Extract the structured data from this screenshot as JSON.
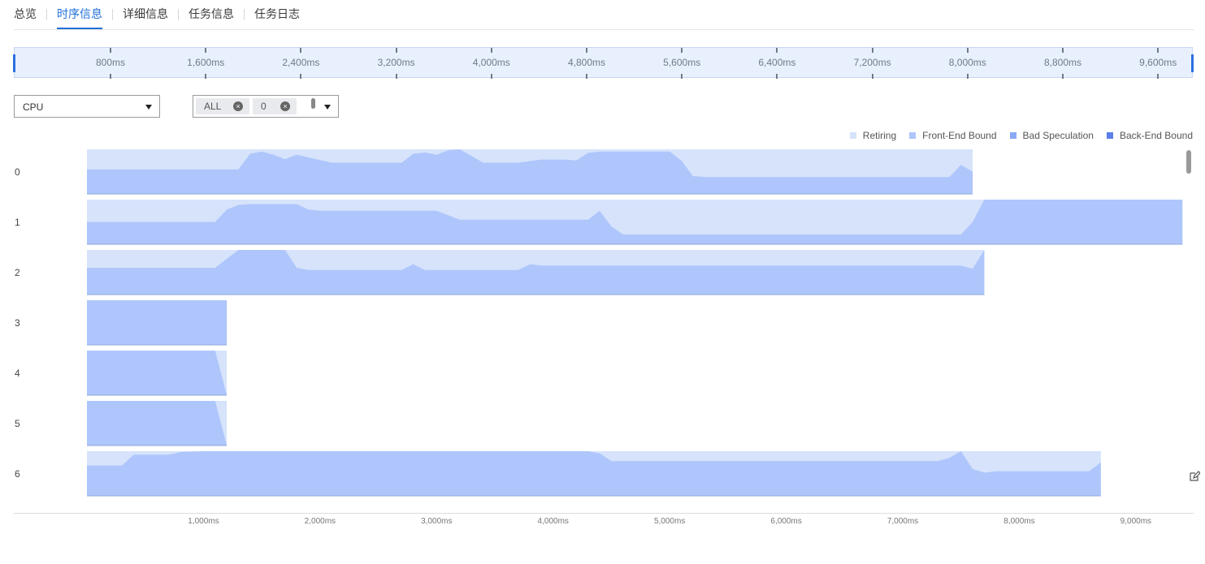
{
  "tabs": [
    {
      "label": "总览",
      "active": false
    },
    {
      "label": "时序信息",
      "active": true
    },
    {
      "label": "详细信息",
      "active": false
    },
    {
      "label": "任务信息",
      "active": false
    },
    {
      "label": "任务日志",
      "active": false
    }
  ],
  "overview_ticks": [
    "800ms",
    "1,600ms",
    "2,400ms",
    "3,200ms",
    "4,000ms",
    "4,800ms",
    "5,600ms",
    "6,400ms",
    "7,200ms",
    "8,000ms",
    "8,800ms",
    "9,600ms"
  ],
  "controls": {
    "type_select": {
      "value": "CPU"
    },
    "core_select": {
      "chips": [
        "ALL",
        "0"
      ]
    }
  },
  "legend": [
    {
      "label": "Retiring",
      "color": "#d6e3fb"
    },
    {
      "label": "Front-End Bound",
      "color": "#aec6fb"
    },
    {
      "label": "Bad Speculation",
      "color": "#89a8f5"
    },
    {
      "label": "Back-End Bound",
      "color": "#5a7fe8"
    }
  ],
  "rows": [
    "0",
    "1",
    "2",
    "3",
    "4",
    "5",
    "6"
  ],
  "bottom_ticks": [
    "1,000ms",
    "2,000ms",
    "3,000ms",
    "4,000ms",
    "5,000ms",
    "6,000ms",
    "7,000ms",
    "8,000ms",
    "9,000ms"
  ],
  "chart_data": {
    "type": "area",
    "x_unit": "ms",
    "y_range": [
      0,
      1
    ],
    "series": [
      {
        "name": "Retiring",
        "color": "#d6e3fb"
      },
      {
        "name": "Front-End Bound",
        "color": "#aec6fb"
      }
    ],
    "cores": [
      {
        "core": "0",
        "end_ms": 7600,
        "front_end": [
          [
            0,
            0.55
          ],
          [
            1300,
            0.55
          ],
          [
            1400,
            0.9
          ],
          [
            1500,
            0.95
          ],
          [
            1600,
            0.88
          ],
          [
            1700,
            0.78
          ],
          [
            1800,
            0.88
          ],
          [
            1900,
            0.82
          ],
          [
            2100,
            0.7
          ],
          [
            2700,
            0.7
          ],
          [
            2800,
            0.9
          ],
          [
            2900,
            0.93
          ],
          [
            3000,
            0.88
          ],
          [
            3100,
            0.98
          ],
          [
            3200,
            1
          ],
          [
            3300,
            0.85
          ],
          [
            3400,
            0.7
          ],
          [
            3700,
            0.7
          ],
          [
            3900,
            0.77
          ],
          [
            4100,
            0.77
          ],
          [
            4200,
            0.75
          ],
          [
            4300,
            0.92
          ],
          [
            4400,
            0.95
          ],
          [
            5000,
            0.95
          ],
          [
            5100,
            0.75
          ],
          [
            5200,
            0.4
          ],
          [
            5300,
            0.38
          ],
          [
            7400,
            0.38
          ],
          [
            7500,
            0.65
          ],
          [
            7600,
            0.5
          ]
        ]
      },
      {
        "core": "1",
        "end_ms": 9400,
        "front_end": [
          [
            0,
            0.5
          ],
          [
            1100,
            0.5
          ],
          [
            1200,
            0.78
          ],
          [
            1300,
            0.88
          ],
          [
            1400,
            0.9
          ],
          [
            1800,
            0.9
          ],
          [
            1900,
            0.78
          ],
          [
            2000,
            0.75
          ],
          [
            3000,
            0.75
          ],
          [
            3100,
            0.65
          ],
          [
            3200,
            0.55
          ],
          [
            4300,
            0.55
          ],
          [
            4400,
            0.75
          ],
          [
            4500,
            0.4
          ],
          [
            4600,
            0.22
          ],
          [
            7500,
            0.22
          ],
          [
            7600,
            0.5
          ],
          [
            7700,
            1
          ],
          [
            9400,
            1
          ]
        ]
      },
      {
        "core": "2",
        "end_ms": 7700,
        "front_end": [
          [
            0,
            0.6
          ],
          [
            1100,
            0.6
          ],
          [
            1200,
            0.8
          ],
          [
            1300,
            1
          ],
          [
            1700,
            1
          ],
          [
            1800,
            0.6
          ],
          [
            1900,
            0.55
          ],
          [
            2700,
            0.55
          ],
          [
            2800,
            0.68
          ],
          [
            2900,
            0.55
          ],
          [
            3700,
            0.55
          ],
          [
            3800,
            0.68
          ],
          [
            3900,
            0.65
          ],
          [
            7500,
            0.65
          ],
          [
            7600,
            0.58
          ],
          [
            7700,
            1
          ]
        ]
      },
      {
        "core": "3",
        "end_ms": 1200,
        "front_end": [
          [
            0,
            1
          ],
          [
            1200,
            1
          ]
        ]
      },
      {
        "core": "4",
        "end_ms": 1200,
        "front_end": [
          [
            0,
            1
          ],
          [
            1100,
            1
          ],
          [
            1200,
            0
          ]
        ]
      },
      {
        "core": "5",
        "end_ms": 1200,
        "front_end": [
          [
            0,
            1
          ],
          [
            1100,
            1
          ],
          [
            1200,
            0
          ]
        ]
      },
      {
        "core": "6",
        "end_ms": 8700,
        "front_end": [
          [
            0,
            0.68
          ],
          [
            300,
            0.68
          ],
          [
            400,
            0.92
          ],
          [
            700,
            0.92
          ],
          [
            800,
            0.98
          ],
          [
            1000,
            1
          ],
          [
            4300,
            1
          ],
          [
            4400,
            0.95
          ],
          [
            4500,
            0.78
          ],
          [
            7300,
            0.78
          ],
          [
            7400,
            0.85
          ],
          [
            7500,
            1
          ],
          [
            7600,
            0.6
          ],
          [
            7700,
            0.52
          ],
          [
            7800,
            0.55
          ],
          [
            8600,
            0.55
          ],
          [
            8700,
            0.75
          ]
        ]
      }
    ]
  }
}
